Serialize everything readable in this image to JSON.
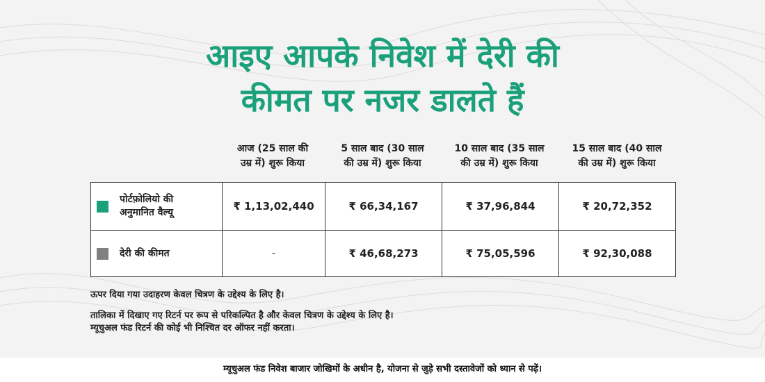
{
  "headline": {
    "line1": "आइए आपके निवेश में देरी की",
    "line2": "कीमत पर नजर डालते हैं"
  },
  "columns": [
    {
      "line1": "आज (25 साल की",
      "line2": "उम्र में) शुरू किया"
    },
    {
      "line1": "5 साल बाद (30 साल",
      "line2": "की उम्र में) शुरू किया"
    },
    {
      "line1": "10 साल बाद (35 साल",
      "line2": "की उम्र में) शुरू किया"
    },
    {
      "line1": "15 साल बाद (40 साल",
      "line2": "की उम्र में) शुरू किया"
    }
  ],
  "rows": [
    {
      "line1": "पोर्टफ़ोलियो की",
      "line2": "अनुमानित वैल्यू",
      "color": "#1aa07a",
      "values": [
        "₹ 1,13,02,440",
        "₹ 66,34,167",
        "₹ 37,96,844",
        "₹ 20,72,352"
      ]
    },
    {
      "line1": "देरी की कीमत",
      "line2": "",
      "color": "#808080",
      "values": [
        "-",
        "₹ 46,68,273",
        "₹ 75,05,596",
        "₹ 92,30,088"
      ]
    }
  ],
  "notes": [
    "ऊपर दिया गया उदाहरण केवल चित्रण के उद्देश्य के लिए है।",
    "तालिका में दिखाए गए रिटर्न पर रूप से परिकल्पित है और केवल चित्रण के उद्देश्य के लिए है।",
    "म्यूचुअल फंड रिटर्न की कोई भी निश्चित दर ऑफर नहीं करता।"
  ],
  "footer": "म्यूचुअल फंड निवेश बाजार जोखिमों के अधीन है, योजना से जुड़े सभी दस्तावेजों को ध्यान से पढ़ें।"
}
